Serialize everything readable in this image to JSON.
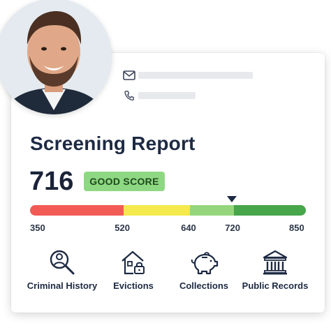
{
  "report": {
    "title": "Screening Report",
    "score": "716",
    "score_badge": "GOOD SCORE",
    "score_value": 716,
    "contact": [
      {
        "icon": "envelope-icon"
      },
      {
        "icon": "phone-icon"
      }
    ]
  },
  "gauge": {
    "range": [
      350,
      850
    ],
    "tick_labels": [
      "350",
      "520",
      "640",
      "720",
      "850"
    ],
    "segments": [
      {
        "from": 350,
        "to": 520,
        "color": "#f25a55"
      },
      {
        "from": 520,
        "to": 640,
        "color": "#f4ea4d"
      },
      {
        "from": 640,
        "to": 720,
        "color": "#95d67c"
      },
      {
        "from": 720,
        "to": 850,
        "color": "#47a54a"
      }
    ]
  },
  "categories": [
    {
      "label": "Criminal History",
      "icon": "magnifier-person-icon"
    },
    {
      "label": "Evictions",
      "icon": "house-lock-icon"
    },
    {
      "label": "Collections",
      "icon": "piggy-bank-icon"
    },
    {
      "label": "Public Records",
      "icon": "courthouse-icon"
    }
  ],
  "colors": {
    "title": "#1d2a43",
    "badge_bg": "#8fd883",
    "badge_text": "#1f4a1f"
  }
}
